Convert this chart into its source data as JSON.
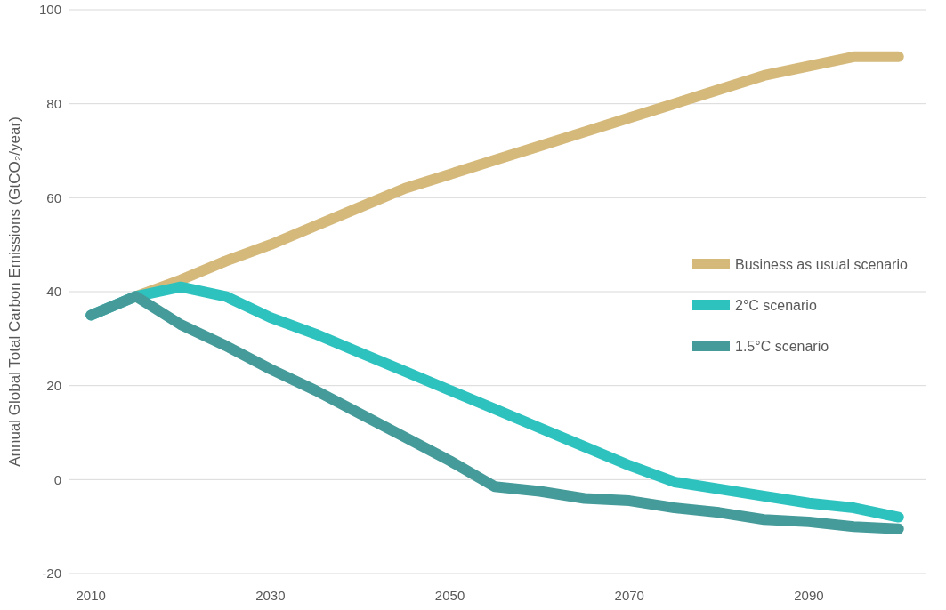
{
  "chart_data": {
    "type": "line",
    "ylabel": "Annual Global Total Carbon Emissions (GtCO₂/year)",
    "x": [
      2010,
      2015,
      2020,
      2025,
      2030,
      2035,
      2040,
      2045,
      2050,
      2055,
      2060,
      2065,
      2070,
      2075,
      2080,
      2085,
      2090,
      2095,
      2100
    ],
    "series": [
      {
        "name": "Business as usual scenario",
        "color": "#d5b97b",
        "values": [
          null,
          39,
          42.5,
          46.5,
          50,
          54,
          58,
          62,
          65,
          68,
          71,
          74,
          77,
          80,
          83,
          86,
          88,
          90,
          90
        ]
      },
      {
        "name": "2°C scenario",
        "color": "#2ec2bf",
        "values": [
          35,
          39,
          41,
          39,
          34.5,
          31,
          27,
          23,
          19,
          15,
          11,
          7,
          3,
          -0.5,
          -2,
          -3.5,
          -5,
          -6,
          -8
        ]
      },
      {
        "name": "1.5°C scenario",
        "color": "#459b9a",
        "values": [
          35,
          39,
          33,
          28.5,
          23.5,
          19,
          14,
          9,
          4,
          -1.5,
          -2.5,
          -4,
          -4.5,
          -6,
          -7,
          -8.5,
          -9,
          -10,
          -10.5
        ]
      }
    ],
    "xlim": [
      2007.5,
      2103
    ],
    "xticks": [
      2010,
      2030,
      2050,
      2070,
      2090
    ],
    "ylim": [
      -20,
      100
    ],
    "yticks": [
      -20,
      0,
      20,
      40,
      60,
      80,
      100
    ],
    "grid": "y",
    "legend": "right",
    "line_style": "solid",
    "marker": "none"
  }
}
